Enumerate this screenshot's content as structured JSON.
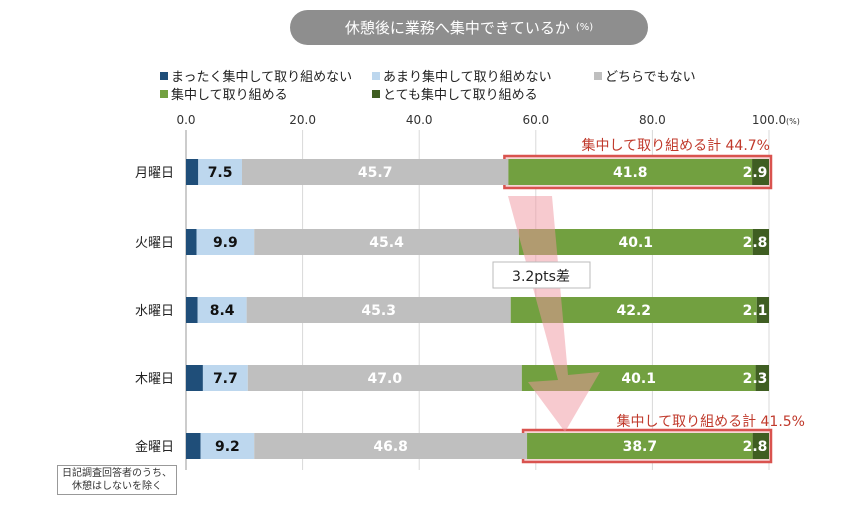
{
  "chart_data": {
    "type": "bar",
    "orientation": "horizontal-stacked",
    "title": "休憩後に業務へ集中できているか",
    "title_unit": "(%)",
    "categories": [
      "月曜日",
      "火曜日",
      "水曜日",
      "木曜日",
      "金曜日"
    ],
    "series": [
      {
        "name": "まったく集中して取り組めない",
        "color": "#1f4e79",
        "values": [
          2.1,
          1.8,
          2.0,
          2.9,
          2.5
        ],
        "show_labels": false
      },
      {
        "name": "あまり集中して取り組めない",
        "color": "#bdd7ee",
        "values": [
          7.5,
          9.9,
          8.4,
          7.7,
          9.2
        ],
        "show_labels": true,
        "label_color": "#111"
      },
      {
        "name": "どちらでもない",
        "color": "#bfbfbf",
        "values": [
          45.7,
          45.4,
          45.3,
          47.0,
          46.8
        ],
        "show_labels": true,
        "label_color": "#fff"
      },
      {
        "name": "集中して取り組める",
        "color": "#72a040",
        "values": [
          41.8,
          40.1,
          42.2,
          40.1,
          38.7
        ],
        "show_labels": true,
        "label_color": "#fff"
      },
      {
        "name": "とても集中して取り組める",
        "color": "#3f5e22",
        "values": [
          2.9,
          2.8,
          2.1,
          2.3,
          2.8
        ],
        "show_labels": true,
        "label_color": "#fff"
      }
    ],
    "xlim": [
      0,
      100
    ],
    "xticks": [
      "0.0",
      "20.0",
      "40.0",
      "60.0",
      "80.0",
      "100.0"
    ],
    "xunit": "(%)",
    "grid": true,
    "legend_placement": "top",
    "annotations": {
      "monday_total": "集中して取り組める計 44.7%",
      "friday_total": "集中して取り組める計 41.5%",
      "difference": "3.2pts差"
    },
    "note_lines": [
      "日記調査回答者のうち、",
      "休憩はしないを除く"
    ]
  }
}
